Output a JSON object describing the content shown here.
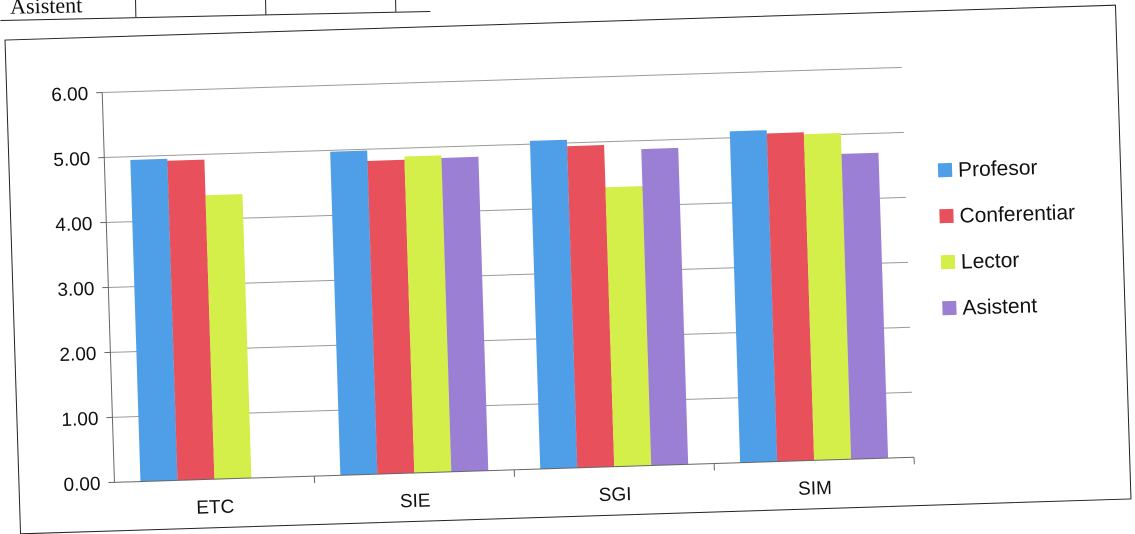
{
  "table_fragment": {
    "row_label": "Asistent"
  },
  "chart_data": {
    "type": "bar",
    "categories": [
      "ETC",
      "SIE",
      "SGI",
      "SIM"
    ],
    "series": [
      {
        "name": "Profesor",
        "color": "#4f9ee8",
        "values": [
          4.95,
          4.98,
          5.05,
          5.1
        ]
      },
      {
        "name": "Conferentiar",
        "color": "#e8505b",
        "values": [
          4.92,
          4.82,
          4.95,
          5.05
        ]
      },
      {
        "name": "Lector",
        "color": "#d4ee4a",
        "values": [
          4.37,
          4.87,
          4.3,
          5.02
        ]
      },
      {
        "name": "Asistent",
        "color": "#9b7fd4",
        "values": [
          null,
          4.83,
          4.87,
          4.7
        ]
      }
    ],
    "yticks": [
      "0.00",
      "1.00",
      "2.00",
      "3.00",
      "4.00",
      "5.00",
      "6.00"
    ],
    "ylim": [
      0,
      6
    ],
    "grid": true,
    "legend_position": "right"
  }
}
